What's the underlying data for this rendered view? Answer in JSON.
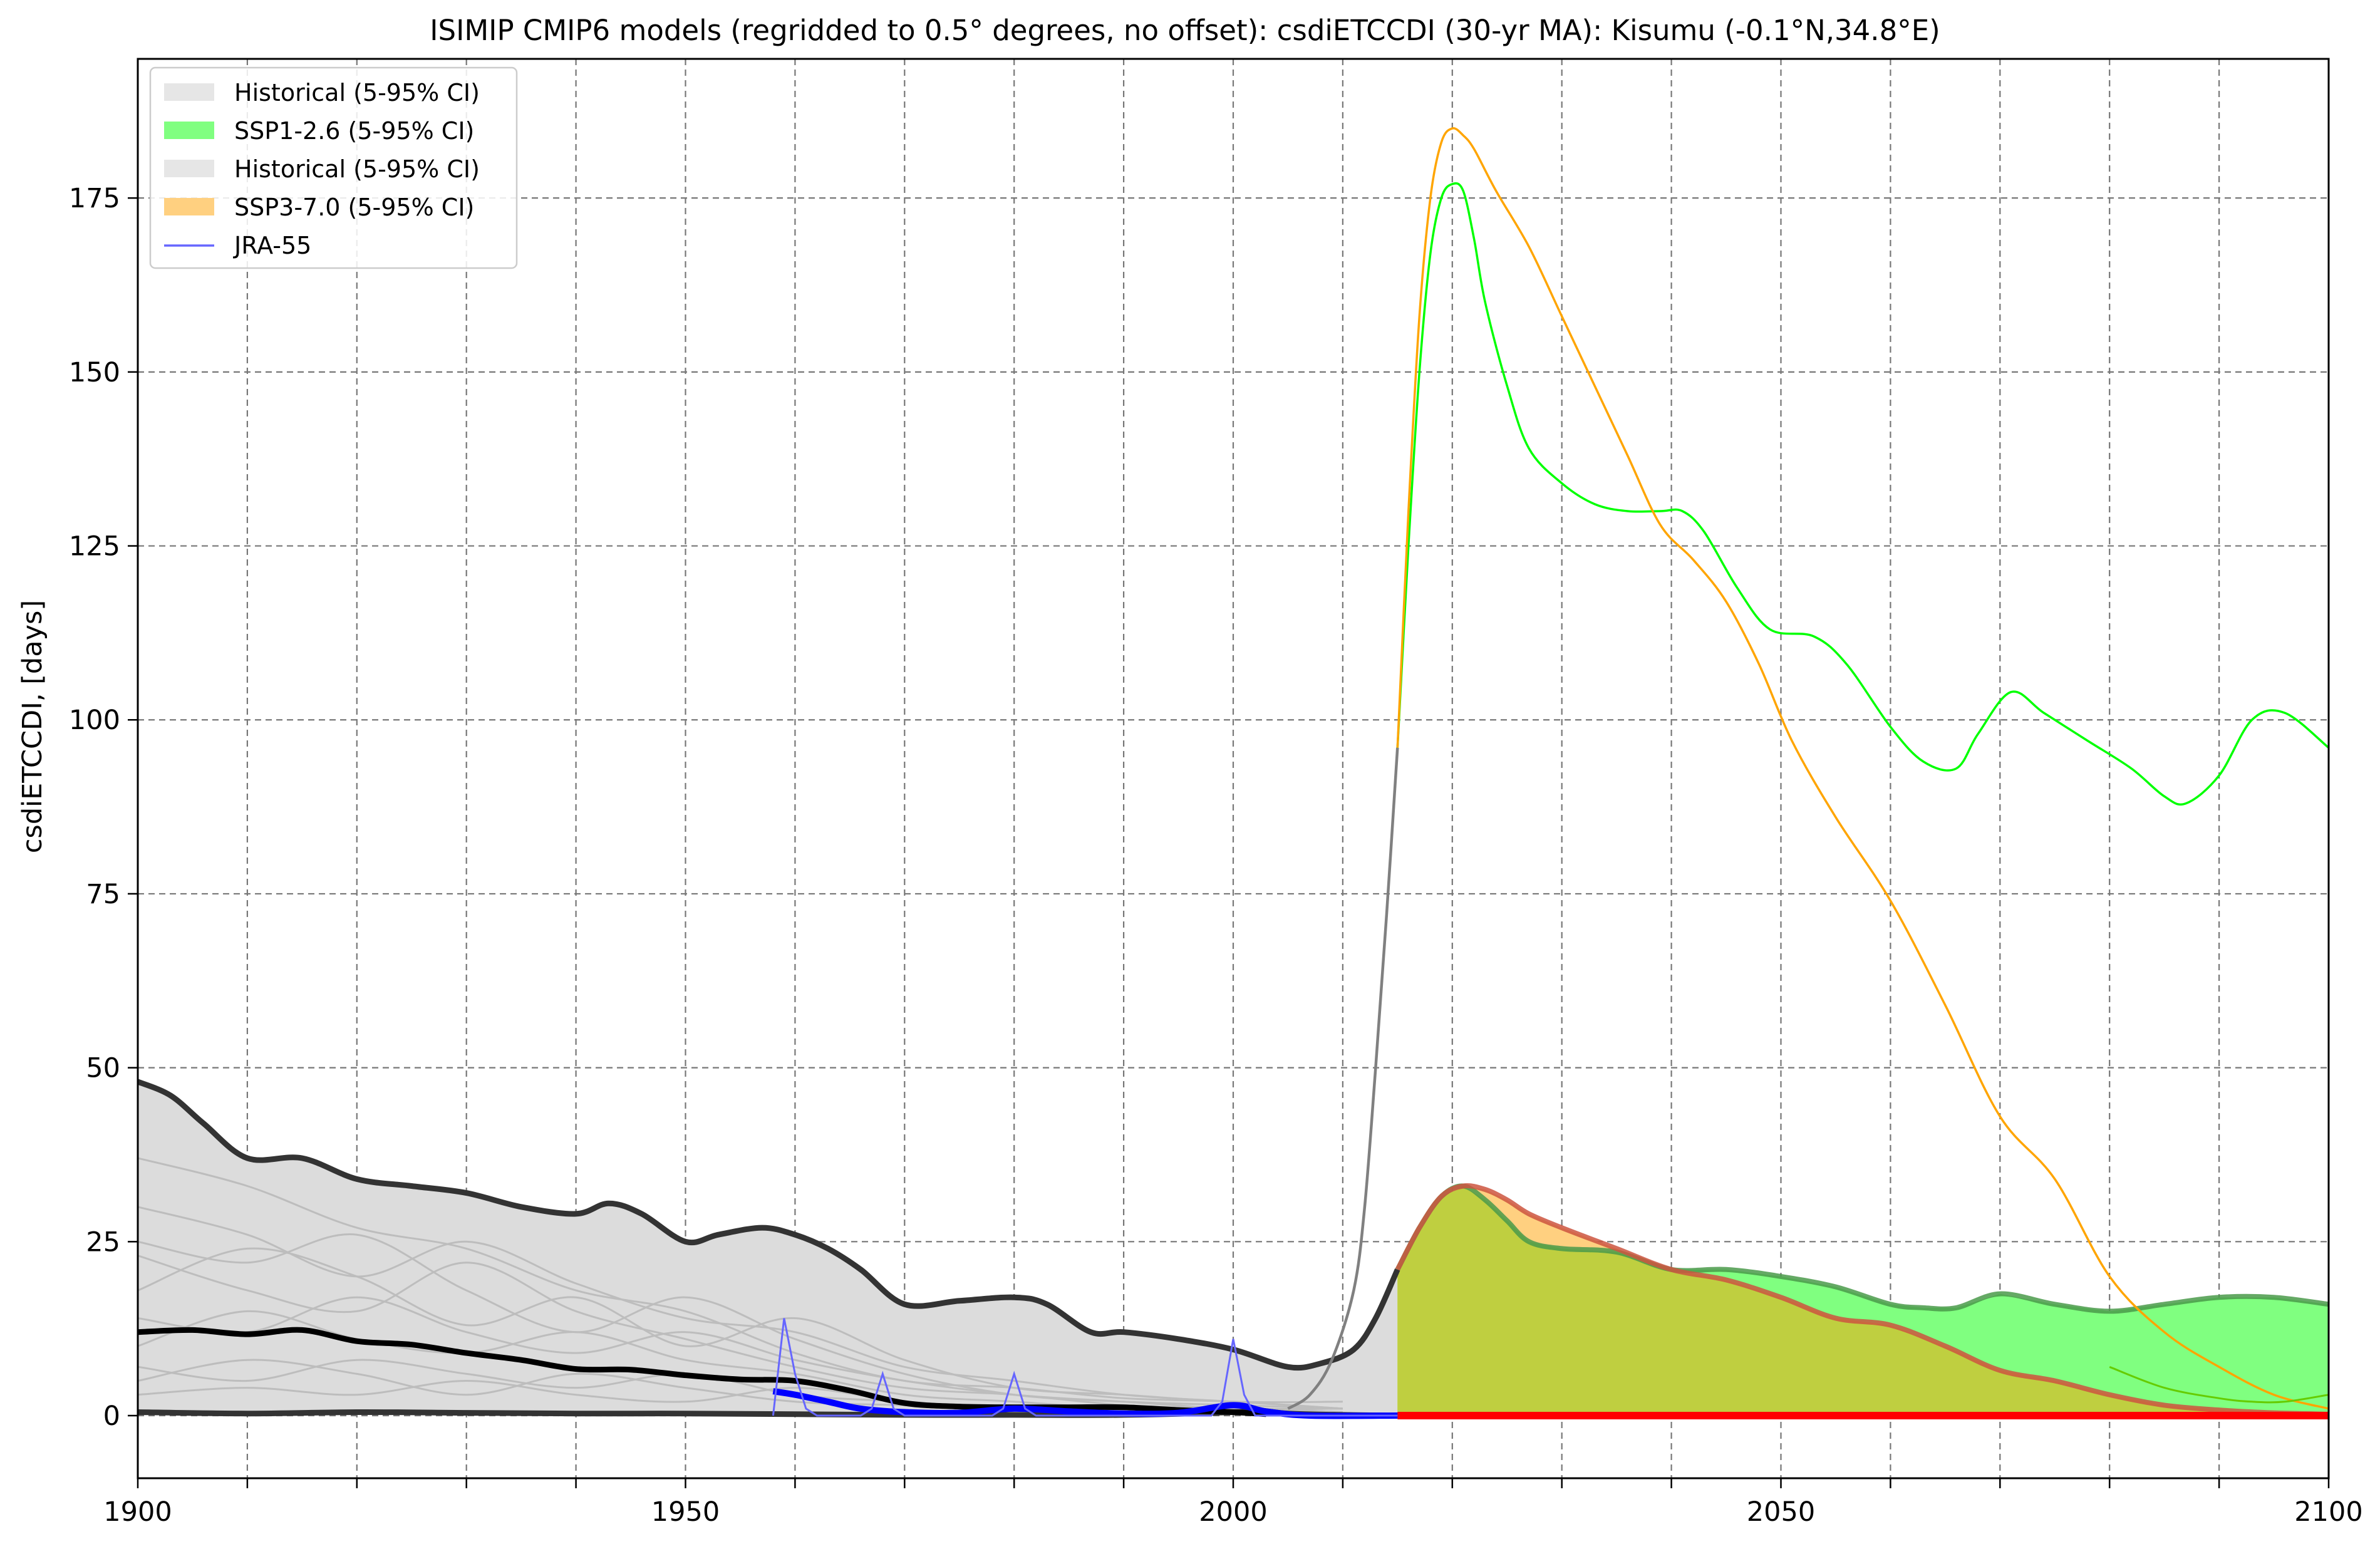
{
  "chart_data": {
    "type": "line",
    "title": "ISIMIP CMIP6 models (regridded to 0.5° degrees, no offset): csdiETCCDI (30-yr MA): Kisumu (-0.1°N,34.8°E)",
    "xlabel": "",
    "ylabel": "csdiETCCDI, [days]",
    "xlim": [
      1900,
      2100
    ],
    "ylim": [
      -9,
      195
    ],
    "x_ticks": [
      1900,
      1950,
      2000,
      2050,
      2100
    ],
    "x_minor_ticks": [
      1910,
      1920,
      1930,
      1940,
      1960,
      1970,
      1980,
      1990,
      2010,
      2020,
      2030,
      2040,
      2060,
      2070,
      2080,
      2090
    ],
    "y_ticks": [
      0,
      25,
      50,
      75,
      100,
      125,
      150,
      175
    ],
    "grid": true,
    "legend_position": "top-left",
    "legend": [
      {
        "label": "Historical (5-95% CI)",
        "kind": "patch",
        "color": "#e6e6e6"
      },
      {
        "label": "SSP1-2.6 (5-95% CI)",
        "kind": "patch",
        "color": "#80ff80"
      },
      {
        "label": "Historical (5-95% CI)",
        "kind": "patch",
        "color": "#e6e6e6"
      },
      {
        "label": "SSP3-7.0 (5-95% CI)",
        "kind": "patch",
        "color": "#ffd080"
      },
      {
        "label": "JRA-55",
        "kind": "line",
        "color": "#6666ff"
      }
    ],
    "colors": {
      "historical_band": "#dcdcdc",
      "model_lines": "#bdbdbd",
      "historical_bounds": "#333333",
      "historical_median": "#000000",
      "ssp126_band": "#80ff80",
      "ssp126_upper_edge": "#4a9a4a",
      "ssp126_line": "#00ff00",
      "ssp370_band": "#ffd080",
      "ssp370_line": "#ffa500",
      "overlap_band": "#bfcf40",
      "ssp370_upper_edge": "#cc5540",
      "red_baseline": "#ff0000",
      "jra55_thin": "#6666ff",
      "jra55_smooth": "#0000ff",
      "gray_outlier": "#808080"
    },
    "series": [
      {
        "name": "Historical (5-95% CI)",
        "role": "historical_upper",
        "x": [
          1900,
          1903,
          1906,
          1910,
          1915,
          1920,
          1925,
          1930,
          1935,
          1940,
          1943,
          1946,
          1950,
          1953,
          1957,
          1960,
          1963,
          1966,
          1970,
          1975,
          1980,
          1983,
          1987,
          1990,
          1995,
          2000,
          2005,
          2008,
          2011,
          2013,
          2015
        ],
        "y": [
          48,
          46,
          42,
          37,
          37,
          34,
          33,
          32,
          30,
          29,
          30.5,
          29,
          25,
          26,
          27,
          26,
          24,
          21,
          16,
          16.5,
          17,
          16,
          12,
          12,
          11,
          9.5,
          7,
          7.5,
          9.5,
          14,
          21
        ]
      },
      {
        "name": "Historical (5-95% CI)",
        "role": "historical_lower",
        "x": [
          1900,
          1910,
          1920,
          1930,
          1940,
          1950,
          1960,
          1970,
          1980,
          1990,
          2000,
          2002,
          2005,
          2010,
          2015
        ],
        "y": [
          0.5,
          0.3,
          0.5,
          0.4,
          0.3,
          0.3,
          0.2,
          0.1,
          0.1,
          0.1,
          0.5,
          0.8,
          0.3,
          0.1,
          0
        ]
      },
      {
        "name": "Historical median",
        "role": "historical_median",
        "x": [
          1900,
          1905,
          1910,
          1915,
          1920,
          1925,
          1930,
          1935,
          1940,
          1945,
          1950,
          1955,
          1960,
          1965,
          1970,
          1975,
          1980,
          1985,
          1990,
          1995,
          2000,
          2003
        ],
        "y": [
          12,
          12.3,
          11.7,
          12.3,
          10.7,
          10.2,
          9,
          8,
          6.7,
          6.6,
          5.8,
          5.2,
          5,
          3.6,
          1.8,
          1.3,
          1.2,
          1.2,
          1.2,
          0.8,
          0.5,
          0.2
        ]
      },
      {
        "name": "SSP1-2.6 (5-95% CI)",
        "role": "ssp126_upper",
        "x": [
          2015,
          2017,
          2019,
          2021,
          2023,
          2025,
          2027,
          2030,
          2035,
          2040,
          2045,
          2050,
          2055,
          2060,
          2063,
          2066,
          2070,
          2075,
          2080,
          2085,
          2090,
          2095,
          2100
        ],
        "y": [
          21,
          27,
          31.5,
          33,
          31,
          28,
          25,
          24,
          23.5,
          21,
          21,
          20,
          18.5,
          16,
          15.5,
          15.5,
          17.5,
          16,
          15,
          16,
          17,
          17,
          16
        ]
      },
      {
        "name": "SSP3-7.0 (5-95% CI)",
        "role": "ssp370_upper",
        "x": [
          2015,
          2017,
          2019,
          2021,
          2023,
          2025,
          2027,
          2030,
          2035,
          2040,
          2045,
          2050,
          2055,
          2060,
          2065,
          2070,
          2075,
          2080,
          2085,
          2090,
          2095,
          2100
        ],
        "y": [
          21,
          27,
          31.5,
          33,
          32.5,
          31,
          29,
          27,
          24,
          21,
          19.5,
          17,
          14,
          13,
          10,
          6.5,
          5,
          3,
          1.5,
          0.8,
          0.4,
          0.2
        ]
      },
      {
        "name": "SSP1-2.6 model",
        "role": "ssp126_line",
        "x": [
          2015,
          2016,
          2017,
          2018,
          2019,
          2020,
          2021,
          2022,
          2023,
          2025,
          2027,
          2030,
          2033,
          2036,
          2039,
          2041,
          2043,
          2046,
          2049,
          2053,
          2056,
          2060,
          2063,
          2066,
          2068,
          2071,
          2074,
          2078,
          2082,
          2085,
          2087,
          2090,
          2093,
          2096,
          2100
        ],
        "y": [
          96,
          125,
          150,
          167,
          175,
          177,
          176,
          169,
          160,
          148,
          139,
          134,
          131,
          130,
          130,
          130,
          127,
          119,
          113,
          112,
          108,
          99,
          94,
          93,
          98,
          104,
          101,
          97,
          93,
          89,
          88,
          92,
          100,
          101,
          96
        ]
      },
      {
        "name": "SSP3-7.0 model",
        "role": "ssp370_line",
        "x": [
          2015,
          2016,
          2017,
          2018,
          2019,
          2020,
          2021,
          2022,
          2024,
          2027,
          2030,
          2033,
          2036,
          2039,
          2042,
          2045,
          2048,
          2051,
          2055,
          2060,
          2065,
          2070,
          2075,
          2080,
          2085,
          2090,
          2095,
          2100
        ],
        "y": [
          96,
          130,
          158,
          175,
          183,
          185,
          184,
          182,
          176,
          168,
          158,
          148,
          138,
          128,
          123,
          117,
          108,
          97,
          86,
          74,
          59,
          43,
          34,
          20,
          12,
          7,
          3,
          1
        ]
      },
      {
        "name": "SSP1-2.6 low model",
        "role": "ssp126_low_line",
        "x": [
          2080,
          2085,
          2090,
          2093,
          2096,
          2100
        ],
        "y": [
          7,
          4,
          2.5,
          2,
          2,
          3
        ]
      },
      {
        "name": "Historical outlier",
        "role": "gray_outlier_line",
        "x": [
          2005,
          2007,
          2009,
          2011,
          2012,
          2013,
          2014,
          2015
        ],
        "y": [
          1,
          3,
          8,
          18,
          30,
          50,
          72,
          96
        ]
      },
      {
        "name": "JRA-55",
        "role": "jra55",
        "x": [
          1958,
          1959,
          1960,
          1961,
          1962,
          1966,
          1967,
          1968,
          1969,
          1970,
          1978,
          1979,
          1980,
          1981,
          1982,
          1998,
          1999,
          2000,
          2001,
          2002,
          2015
        ],
        "y": [
          0,
          14,
          6,
          1,
          0,
          0,
          1,
          6,
          1,
          0,
          0,
          1,
          6,
          1,
          0,
          0,
          2,
          11,
          3,
          0,
          0
        ]
      },
      {
        "name": "JRA-55 smoothed",
        "role": "jra55_smooth",
        "x": [
          1958,
          1960,
          1963,
          1966,
          1970,
          1975,
          1980,
          1985,
          1990,
          1995,
          2000,
          2003,
          2007,
          2015
        ],
        "y": [
          3.5,
          3,
          2,
          1,
          0.5,
          0.4,
          1,
          0.6,
          0.3,
          0.4,
          1.5,
          0.6,
          0,
          0
        ]
      },
      {
        "name": "Historical ensemble members",
        "role": "model_members",
        "members": [
          {
            "x": [
              1900,
              1910,
              1920,
              1930,
              1940,
              1950,
              1960,
              1970,
              1980,
              1990,
              2000,
              2010
            ],
            "y": [
              37,
              33,
              27,
              24,
              18,
              15,
              9,
              5,
              4,
              2.5,
              2,
              1
            ]
          },
          {
            "x": [
              1900,
              1910,
              1920,
              1930,
              1940,
              1950,
              1960,
              1970,
              1980,
              1990,
              2000,
              2010
            ],
            "y": [
              25,
              22,
              26,
              18,
              12,
              17,
              11,
              6,
              3,
              2,
              1.5,
              1
            ]
          },
          {
            "x": [
              1900,
              1910,
              1920,
              1930,
              1940,
              1950,
              1960,
              1970,
              1980,
              1990,
              2000,
              2010
            ],
            "y": [
              18,
              24,
              20,
              13,
              17,
              10,
              14,
              8,
              4,
              3,
              2,
              2
            ]
          },
          {
            "x": [
              1900,
              1910,
              1920,
              1930,
              1940,
              1950,
              1960,
              1970,
              1980,
              1990,
              2000,
              2010
            ],
            "y": [
              23,
              18,
              15,
              22,
              15,
              11,
              7,
              4,
              3,
              1.5,
              1,
              1
            ]
          },
          {
            "x": [
              1900,
              1910,
              1920,
              1930,
              1940,
              1950,
              1960,
              1970,
              1980,
              1990,
              2000,
              2010
            ],
            "y": [
              10,
              15,
              11,
              9,
              12,
              8,
              6,
              3,
              2,
              1,
              1,
              0.5
            ]
          },
          {
            "x": [
              1900,
              1910,
              1920,
              1930,
              1940,
              1950,
              1960,
              1970,
              1980,
              1990,
              2000,
              2010
            ],
            "y": [
              7,
              5,
              8,
              6,
              4,
              6,
              3,
              2,
              1,
              1,
              0.5,
              0.5
            ]
          },
          {
            "x": [
              1900,
              1910,
              1920,
              1930,
              1940,
              1950,
              1960,
              1970,
              1980,
              1990,
              2000,
              2010
            ],
            "y": [
              14,
              12,
              17,
              12,
              9,
              12,
              8,
              5,
              3,
              2,
              1,
              1
            ]
          },
          {
            "x": [
              1900,
              1910,
              1920,
              1930,
              1940,
              1950,
              1960,
              1970,
              1980,
              1990,
              2000,
              2010
            ],
            "y": [
              3,
              4,
              3,
              5,
              3,
              2,
              4,
              2,
              1,
              0.5,
              0.5,
              0.2
            ]
          },
          {
            "x": [
              1900,
              1910,
              1920,
              1930,
              1940,
              1950,
              1960,
              1970,
              1980,
              1990,
              2000,
              2010
            ],
            "y": [
              30,
              26,
              20,
              25,
              19,
              14,
              12,
              7,
              5,
              3,
              2,
              1
            ]
          },
          {
            "x": [
              1900,
              1910,
              1920,
              1930,
              1940,
              1950,
              1960,
              1970,
              1980,
              1990,
              2000,
              2010
            ],
            "y": [
              5,
              8,
              6,
              3,
              6,
              4,
              2,
              1.5,
              1,
              1,
              1,
              0.5
            ]
          }
        ]
      }
    ]
  }
}
